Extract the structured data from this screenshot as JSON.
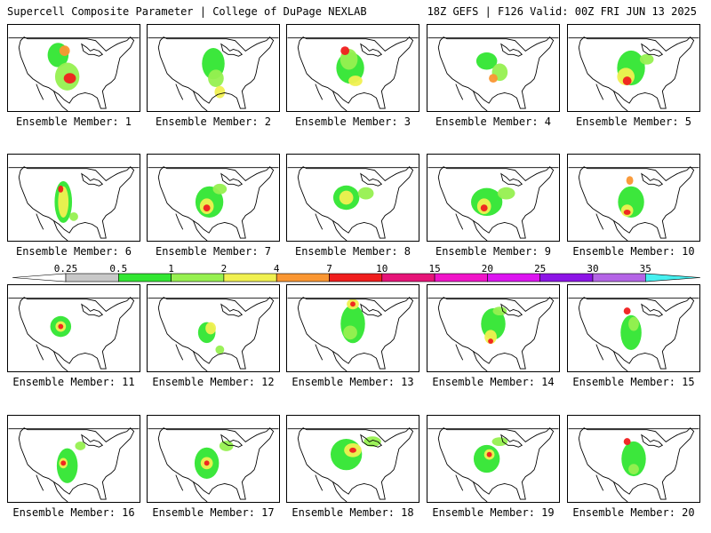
{
  "header": {
    "left": "Supercell Composite Parameter | College of DuPage NEXLAB",
    "right": "18Z GEFS | F126 Valid: 00Z FRI JUN 13 2025"
  },
  "legend": {
    "ticks": [
      "0.25",
      "0.5",
      "1",
      "2",
      "4",
      "7",
      "10",
      "15",
      "20",
      "25",
      "30",
      "35"
    ],
    "colors": [
      "#c8c8c8",
      "#32e632",
      "#96f050",
      "#f0f050",
      "#fa9632",
      "#f01e1e",
      "#e61478",
      "#f014c8",
      "#dc14f0",
      "#8c14e6",
      "#b464e6",
      "#46f0f0"
    ]
  },
  "members": [
    {
      "label": "Ensemble Member: 1",
      "f": [
        [
          0.38,
          0.35,
          12,
          14,
          1
        ],
        [
          0.45,
          0.6,
          14,
          16,
          2
        ],
        [
          0.47,
          0.62,
          7,
          6,
          5
        ],
        [
          0.43,
          0.3,
          6,
          6,
          4
        ]
      ]
    },
    {
      "label": "Ensemble Member: 2",
      "f": [
        [
          0.5,
          0.45,
          13,
          18,
          1
        ],
        [
          0.52,
          0.62,
          9,
          10,
          2
        ],
        [
          0.55,
          0.78,
          6,
          7,
          3
        ]
      ]
    },
    {
      "label": "Ensemble Member: 3",
      "f": [
        [
          0.48,
          0.5,
          16,
          18,
          1
        ],
        [
          0.47,
          0.4,
          10,
          12,
          2
        ],
        [
          0.44,
          0.3,
          5,
          5,
          5
        ],
        [
          0.52,
          0.65,
          8,
          6,
          3
        ]
      ]
    },
    {
      "label": "Ensemble Member: 4",
      "f": [
        [
          0.45,
          0.42,
          12,
          10,
          1
        ],
        [
          0.55,
          0.55,
          9,
          10,
          2
        ],
        [
          0.5,
          0.62,
          5,
          5,
          4
        ]
      ]
    },
    {
      "label": "Ensemble Member: 5",
      "f": [
        [
          0.48,
          0.5,
          16,
          20,
          1
        ],
        [
          0.44,
          0.6,
          10,
          10,
          3
        ],
        [
          0.45,
          0.65,
          5,
          5,
          5
        ],
        [
          0.6,
          0.4,
          8,
          6,
          2
        ]
      ]
    },
    {
      "label": "Ensemble Member: 6",
      "f": [
        [
          0.42,
          0.55,
          10,
          24,
          1
        ],
        [
          0.42,
          0.55,
          6,
          18,
          3
        ],
        [
          0.4,
          0.4,
          3,
          4,
          5
        ],
        [
          0.5,
          0.72,
          5,
          5,
          2
        ]
      ]
    },
    {
      "label": "Ensemble Member: 7",
      "f": [
        [
          0.47,
          0.55,
          16,
          18,
          1
        ],
        [
          0.45,
          0.6,
          8,
          9,
          3
        ],
        [
          0.45,
          0.62,
          4,
          4,
          5
        ],
        [
          0.55,
          0.4,
          8,
          6,
          2
        ]
      ]
    },
    {
      "label": "Ensemble Member: 8",
      "f": [
        [
          0.45,
          0.5,
          15,
          14,
          1
        ],
        [
          0.45,
          0.5,
          8,
          8,
          3
        ],
        [
          0.6,
          0.45,
          9,
          7,
          2
        ]
      ]
    },
    {
      "label": "Ensemble Member: 9",
      "f": [
        [
          0.45,
          0.55,
          18,
          16,
          1
        ],
        [
          0.43,
          0.6,
          8,
          9,
          3
        ],
        [
          0.43,
          0.62,
          4,
          4,
          5
        ],
        [
          0.6,
          0.45,
          10,
          7,
          2
        ]
      ]
    },
    {
      "label": "Ensemble Member: 10",
      "f": [
        [
          0.48,
          0.55,
          15,
          18,
          1
        ],
        [
          0.45,
          0.65,
          7,
          7,
          3
        ],
        [
          0.45,
          0.67,
          4,
          3,
          5
        ],
        [
          0.47,
          0.3,
          4,
          5,
          4
        ]
      ]
    },
    {
      "label": "Ensemble Member: 11",
      "f": [
        [
          0.4,
          0.48,
          12,
          12,
          1
        ],
        [
          0.4,
          0.48,
          6,
          6,
          3
        ],
        [
          0.4,
          0.48,
          3,
          3,
          5
        ]
      ]
    },
    {
      "label": "Ensemble Member: 12",
      "f": [
        [
          0.45,
          0.55,
          10,
          12,
          1
        ],
        [
          0.48,
          0.5,
          6,
          7,
          3
        ],
        [
          0.55,
          0.75,
          5,
          5,
          2
        ]
      ]
    },
    {
      "label": "Ensemble Member: 13",
      "f": [
        [
          0.5,
          0.45,
          14,
          22,
          1
        ],
        [
          0.5,
          0.22,
          7,
          6,
          3
        ],
        [
          0.5,
          0.22,
          3,
          3,
          5
        ],
        [
          0.48,
          0.55,
          8,
          8,
          2
        ]
      ]
    },
    {
      "label": "Ensemble Member: 14",
      "f": [
        [
          0.5,
          0.45,
          14,
          18,
          1
        ],
        [
          0.48,
          0.6,
          7,
          8,
          3
        ],
        [
          0.48,
          0.65,
          3,
          3,
          5
        ],
        [
          0.55,
          0.3,
          8,
          5,
          2
        ]
      ]
    },
    {
      "label": "Ensemble Member: 15",
      "f": [
        [
          0.48,
          0.55,
          12,
          20,
          1
        ],
        [
          0.45,
          0.3,
          4,
          4,
          5
        ],
        [
          0.5,
          0.45,
          6,
          8,
          2
        ]
      ]
    },
    {
      "label": "Ensemble Member: 16",
      "f": [
        [
          0.45,
          0.58,
          12,
          20,
          1
        ],
        [
          0.42,
          0.55,
          5,
          6,
          3
        ],
        [
          0.42,
          0.55,
          3,
          3,
          5
        ],
        [
          0.55,
          0.35,
          6,
          5,
          2
        ]
      ]
    },
    {
      "label": "Ensemble Member: 17",
      "f": [
        [
          0.45,
          0.55,
          14,
          18,
          1
        ],
        [
          0.45,
          0.55,
          7,
          7,
          3
        ],
        [
          0.45,
          0.55,
          3,
          3,
          5
        ],
        [
          0.6,
          0.35,
          8,
          6,
          2
        ]
      ]
    },
    {
      "label": "Ensemble Member: 18",
      "f": [
        [
          0.45,
          0.45,
          18,
          18,
          1
        ],
        [
          0.5,
          0.4,
          10,
          8,
          3
        ],
        [
          0.5,
          0.4,
          4,
          3,
          5
        ],
        [
          0.65,
          0.3,
          10,
          6,
          2
        ]
      ]
    },
    {
      "label": "Ensemble Member: 19",
      "f": [
        [
          0.45,
          0.5,
          15,
          16,
          1
        ],
        [
          0.47,
          0.45,
          6,
          6,
          3
        ],
        [
          0.47,
          0.45,
          3,
          3,
          5
        ],
        [
          0.55,
          0.3,
          9,
          5,
          2
        ]
      ]
    },
    {
      "label": "Ensemble Member: 20",
      "f": [
        [
          0.5,
          0.5,
          14,
          20,
          1
        ],
        [
          0.45,
          0.3,
          4,
          4,
          5
        ],
        [
          0.5,
          0.62,
          6,
          6,
          2
        ]
      ]
    }
  ]
}
